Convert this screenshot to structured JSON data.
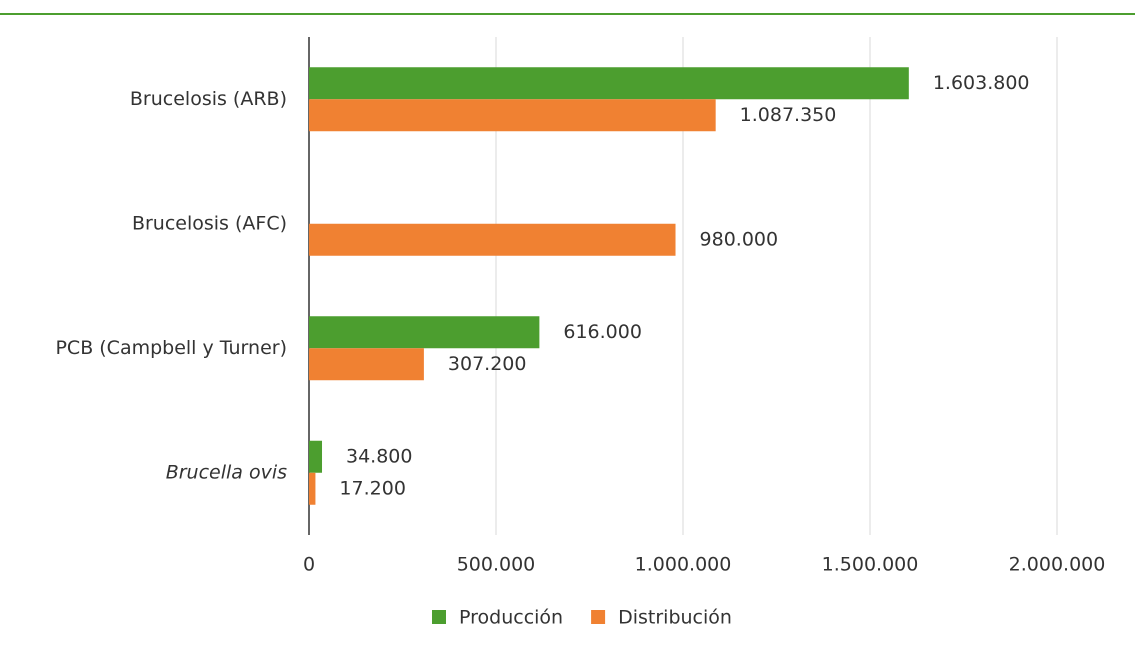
{
  "chart_data": {
    "type": "bar",
    "orientation": "horizontal",
    "categories": [
      "Brucelosis (ARB)",
      "Brucelosis (AFC)",
      "PCB (Campbell y Turner)",
      "Brucella ovis"
    ],
    "series": [
      {
        "name": "Producción",
        "color": "#4c9e2f",
        "values": [
          1603800,
          null,
          616000,
          34800
        ],
        "value_labels": [
          "1.603.800",
          null,
          "616.000",
          "34.800"
        ]
      },
      {
        "name": "Distribución",
        "color": "#f08132",
        "values": [
          1087350,
          980000,
          307200,
          17200
        ],
        "value_labels": [
          "1.087.350",
          "980.000",
          "307.200",
          "17.200"
        ]
      }
    ],
    "xlim": [
      0,
      2000000
    ],
    "xticks": [
      0,
      {
        "value": 500000,
        "label": "500.000"
      },
      {
        "value": 1000000,
        "label": "1.000.000"
      },
      {
        "value": 1500000,
        "label": "1.500.000"
      },
      {
        "value": 2000000,
        "label": "2.000.000"
      }
    ],
    "grid": true,
    "legend": "bottom"
  }
}
